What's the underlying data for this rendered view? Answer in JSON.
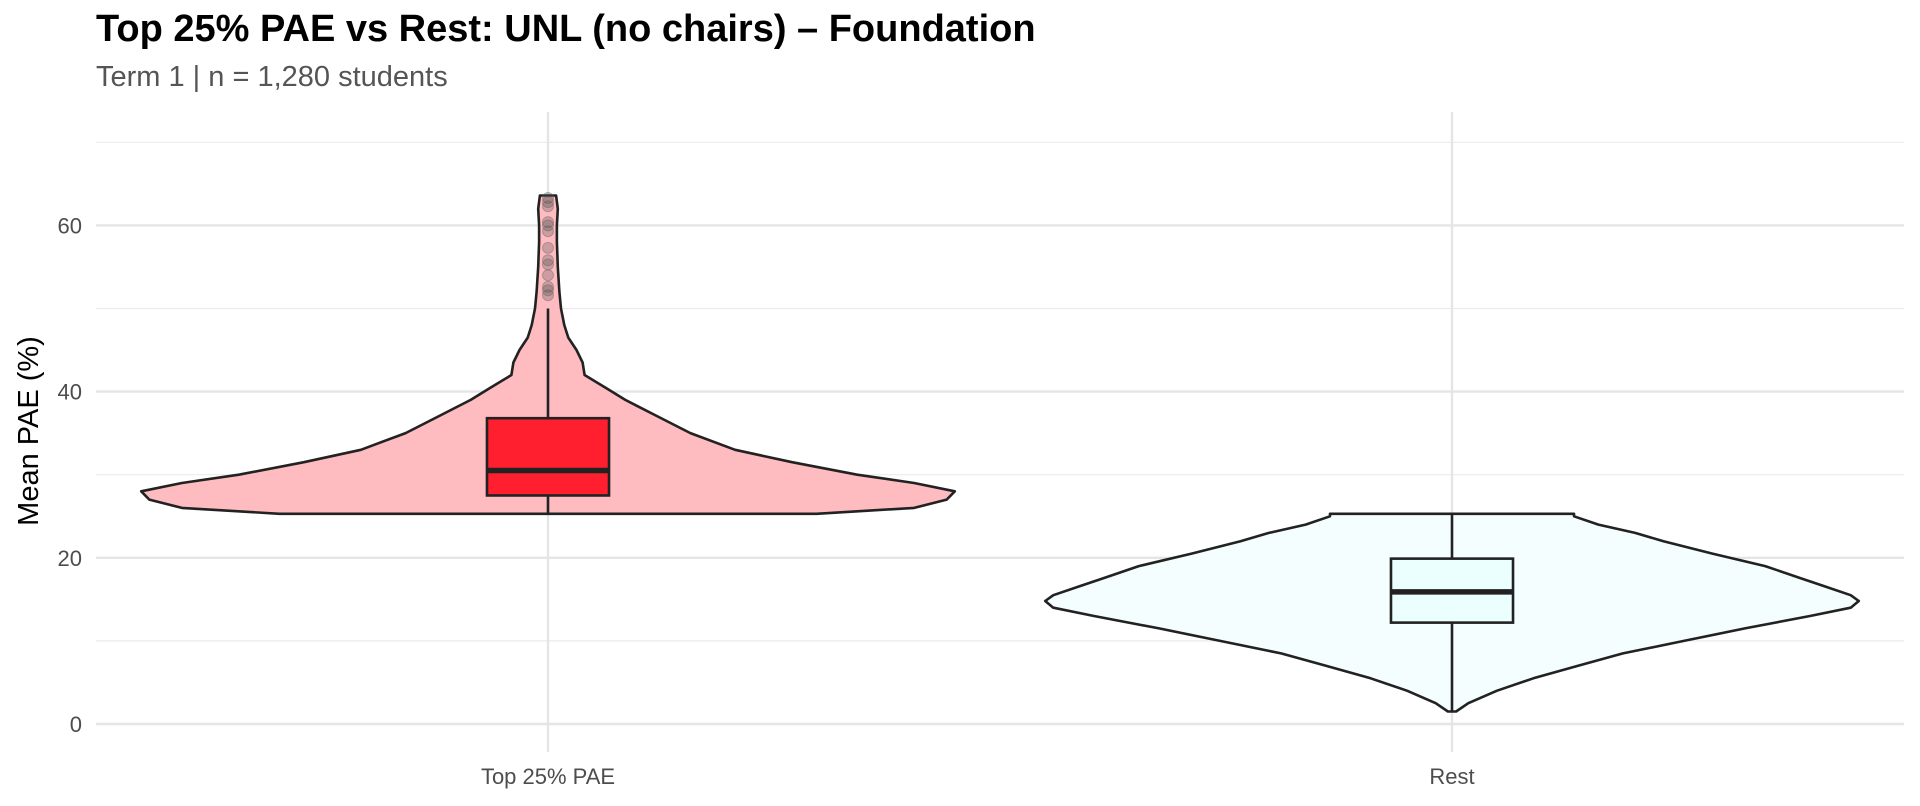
{
  "chart_data": {
    "type": "violin",
    "title": "Top 25% PAE vs Rest: UNL (no chairs) – Foundation",
    "subtitle": "Term 1 | n = 1,280 students",
    "xlabel": "",
    "ylabel": "Mean PAE (%)",
    "ylim": [
      -2,
      70
    ],
    "yticks": [
      0,
      20,
      40,
      60
    ],
    "grid": true,
    "legend": "none",
    "categories": [
      "Top 25% PAE",
      "Rest"
    ],
    "groups": [
      {
        "category": "Top 25% PAE",
        "violin_color": "#ffbcc0",
        "box_color": "#ff1f2e",
        "range": [
          25.3,
          63.6
        ],
        "box": {
          "q1": 27.5,
          "median": 30.5,
          "q3": 36.8,
          "whisker_low": 25.3,
          "whisker_high": 50
        },
        "outliers": [
          51.6,
          52.2,
          52.6,
          54.0,
          55.3,
          55.8,
          57.3,
          59.3,
          60.0,
          60.4,
          62.3,
          62.8,
          63.3
        ],
        "density": [
          [
            25.3,
            0.66
          ],
          [
            26.0,
            0.9
          ],
          [
            27.0,
            0.98
          ],
          [
            28.0,
            1.0
          ],
          [
            29.0,
            0.9
          ],
          [
            30.0,
            0.76
          ],
          [
            31.5,
            0.6
          ],
          [
            33.0,
            0.46
          ],
          [
            35.0,
            0.35
          ],
          [
            37.0,
            0.27
          ],
          [
            39.0,
            0.19
          ],
          [
            40.5,
            0.14
          ],
          [
            42.0,
            0.09
          ],
          [
            43.5,
            0.085
          ],
          [
            45.0,
            0.07
          ],
          [
            46.5,
            0.05
          ],
          [
            48.0,
            0.04
          ],
          [
            50.0,
            0.032
          ],
          [
            52.0,
            0.028
          ],
          [
            55.0,
            0.024
          ],
          [
            58.0,
            0.022
          ],
          [
            60.0,
            0.022
          ],
          [
            62.0,
            0.024
          ],
          [
            63.6,
            0.02
          ]
        ]
      },
      {
        "category": "Rest",
        "violin_color": "#f5fefe",
        "box_color": "#ecffff",
        "range": [
          1.5,
          25.3
        ],
        "box": {
          "q1": 12.2,
          "median": 15.9,
          "q3": 19.9,
          "whisker_low": 1.5,
          "whisker_high": 25.3
        },
        "outliers": [],
        "density": [
          [
            1.5,
            0.01
          ],
          [
            2.5,
            0.04
          ],
          [
            4.0,
            0.11
          ],
          [
            5.5,
            0.2
          ],
          [
            7.0,
            0.31
          ],
          [
            8.5,
            0.42
          ],
          [
            10.0,
            0.57
          ],
          [
            11.5,
            0.72
          ],
          [
            13.0,
            0.88
          ],
          [
            14.0,
            0.98
          ],
          [
            14.8,
            1.0
          ],
          [
            15.5,
            0.98
          ],
          [
            16.5,
            0.92
          ],
          [
            17.5,
            0.86
          ],
          [
            19.0,
            0.77
          ],
          [
            20.5,
            0.64
          ],
          [
            22.0,
            0.52
          ],
          [
            23.0,
            0.45
          ],
          [
            24.0,
            0.36
          ],
          [
            25.0,
            0.3
          ],
          [
            25.3,
            0.3
          ]
        ]
      }
    ]
  }
}
